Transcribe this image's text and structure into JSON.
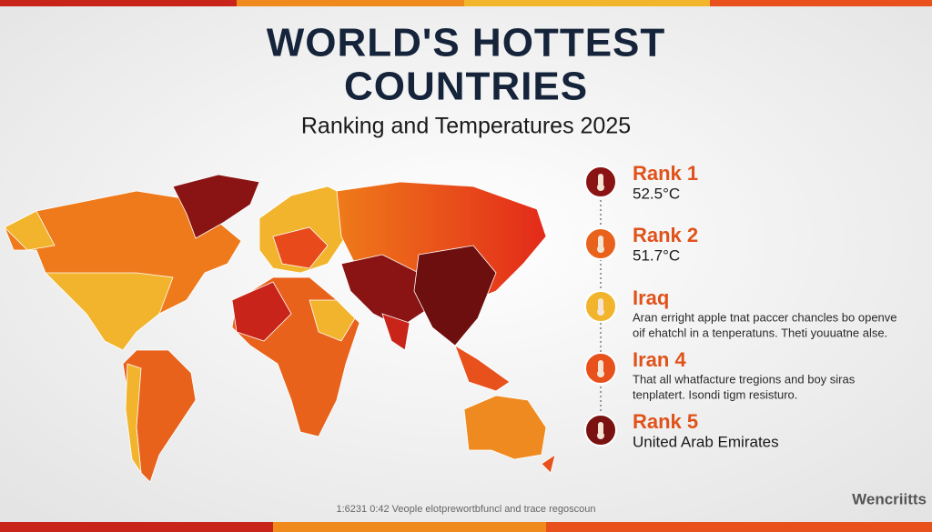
{
  "header": {
    "title_lines": [
      "WORLD'S HOTTEST",
      "COUNTRIES"
    ],
    "subtitle": "Ranking and Temperatures 2025"
  },
  "ranking": [
    {
      "heading": "Rank 1",
      "lines": [
        "52.5°C"
      ]
    },
    {
      "heading": "Rank 2",
      "lines": [
        "51.7°C"
      ]
    },
    {
      "heading": "Iraq",
      "lines": [
        "Aran erright apple tnat paccer chancles bo openve",
        "oif ehatchl in a tenperatuns. Theti youuatne alse."
      ]
    },
    {
      "heading": "Iran 4",
      "lines": [
        "That all whatfacture tregions and boy siras",
        "tenplatert. Isondi tigm resisturo."
      ]
    },
    {
      "heading": "Rank 5",
      "lines": [
        "United Arab Emirates"
      ]
    }
  ],
  "footer": {
    "note": "1:6231 0:42 Veople elotprewortbfuncl and trace regoscoun",
    "logo": "Wencriitts"
  }
}
